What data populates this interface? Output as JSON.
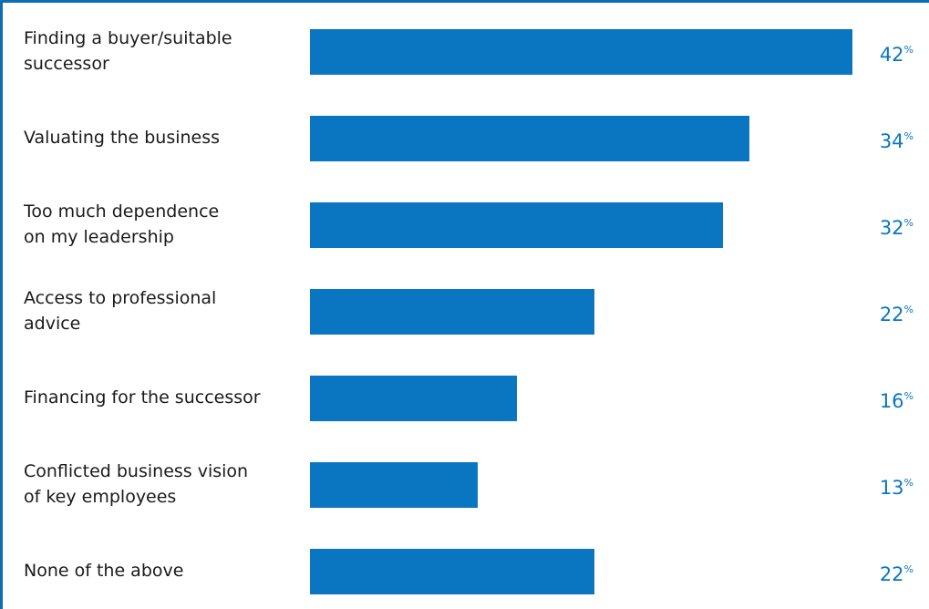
{
  "chart_data": {
    "type": "bar",
    "orientation": "horizontal",
    "categories": [
      "Finding a buyer/suitable\nsuccessor",
      "Valuating the business",
      "Too much dependence\non my leadership",
      "Access to professional\nadvice",
      "Financing for the successor",
      "Conflicted business vision\nof key employees",
      "None of the above"
    ],
    "values": [
      42,
      34,
      32,
      22,
      16,
      13,
      22
    ],
    "value_unit": "%",
    "xlim": [
      0,
      42
    ],
    "colors": {
      "bar": "#0a76c2",
      "value_text": "#0a76c2",
      "label_text": "#1a1a1a",
      "frame": "#0a6fb8"
    },
    "grid": false,
    "legend": "none"
  }
}
